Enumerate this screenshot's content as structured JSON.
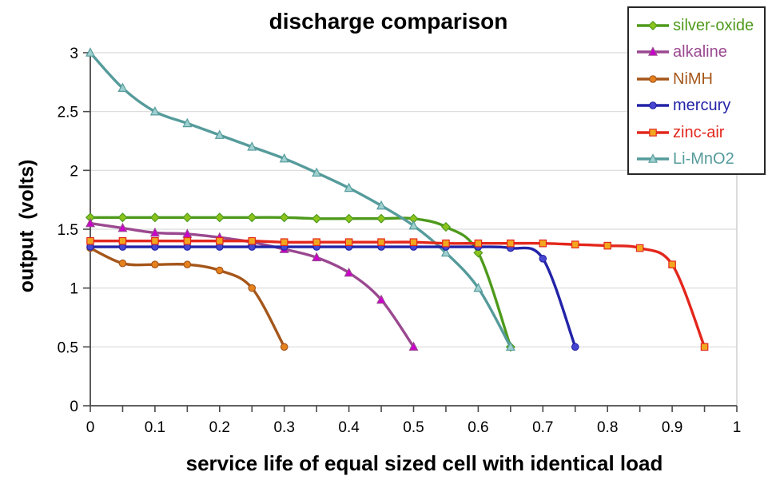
{
  "title": "discharge comparison",
  "x_axis": {
    "label": "service life of equal sized cell with identical load",
    "ticks": [
      "0",
      "0.1",
      "0.2",
      "0.3",
      "0.4",
      "0.5",
      "0.6",
      "0.7",
      "0.8",
      "0.9",
      "1"
    ],
    "range": [
      0,
      1
    ],
    "minor_tick_step": 0.05
  },
  "y_axis": {
    "label": "output  (volts)",
    "ticks": [
      "0",
      "0.5",
      "1",
      "1.5",
      "2",
      "2.5",
      "3"
    ],
    "range": [
      0,
      3
    ],
    "tick_step": 0.5
  },
  "legend": {
    "entries": [
      "silver-oxide",
      "alkaline",
      "NiMH",
      "mercury",
      "zinc-air",
      "Li-MnO2"
    ],
    "position": "top-right"
  },
  "colors": {
    "background": "#ffffff",
    "axis": "#4a4a4a",
    "grid": "#dadada",
    "plot_right_border": "#c8c8c8",
    "text": "#000000",
    "legend_border": "#262626"
  },
  "chart_data": {
    "type": "line",
    "title": "discharge comparison",
    "xlabel": "service life of equal sized cell with identical load",
    "ylabel": "output  (volts)",
    "xlim": [
      0,
      1
    ],
    "ylim": [
      0,
      3
    ],
    "grid": "horizontal-only, every 0.5 volts",
    "legend_position": "top-right",
    "line_style": "smooth",
    "series": [
      {
        "name": "silver-oxide",
        "color": "#4e9a1c",
        "marker": "diamond",
        "marker_fill": "#8cc41c",
        "x": [
          0,
          0.05,
          0.1,
          0.15,
          0.2,
          0.25,
          0.3,
          0.35,
          0.4,
          0.45,
          0.5,
          0.55,
          0.6,
          0.65
        ],
        "y": [
          1.6,
          1.6,
          1.6,
          1.6,
          1.6,
          1.6,
          1.6,
          1.59,
          1.59,
          1.59,
          1.59,
          1.52,
          1.3,
          0.5
        ]
      },
      {
        "name": "alkaline",
        "color": "#9a4890",
        "marker": "triangle",
        "marker_fill": "#cc00cc",
        "x": [
          0,
          0.05,
          0.1,
          0.15,
          0.2,
          0.25,
          0.3,
          0.35,
          0.4,
          0.45,
          0.5
        ],
        "y": [
          1.55,
          1.51,
          1.47,
          1.46,
          1.43,
          1.39,
          1.33,
          1.26,
          1.13,
          0.9,
          0.5
        ]
      },
      {
        "name": "NiMH",
        "color": "#a5561a",
        "marker": "circle",
        "marker_fill": "#e6821e",
        "x": [
          0,
          0.05,
          0.1,
          0.15,
          0.2,
          0.25,
          0.3
        ],
        "y": [
          1.34,
          1.21,
          1.2,
          1.2,
          1.15,
          1.0,
          0.5
        ]
      },
      {
        "name": "mercury",
        "color": "#2323a8",
        "marker": "circle",
        "marker_fill": "#4747d1",
        "x": [
          0,
          0.05,
          0.1,
          0.15,
          0.2,
          0.25,
          0.3,
          0.35,
          0.4,
          0.45,
          0.5,
          0.55,
          0.6,
          0.65,
          0.7,
          0.75
        ],
        "y": [
          1.35,
          1.35,
          1.35,
          1.35,
          1.35,
          1.35,
          1.35,
          1.35,
          1.35,
          1.35,
          1.35,
          1.35,
          1.35,
          1.34,
          1.25,
          0.5
        ]
      },
      {
        "name": "zinc-air",
        "color": "#e3271d",
        "marker": "square",
        "marker_fill": "#f2a71f",
        "x": [
          0,
          0.05,
          0.1,
          0.15,
          0.2,
          0.25,
          0.3,
          0.35,
          0.4,
          0.45,
          0.5,
          0.55,
          0.6,
          0.65,
          0.7,
          0.75,
          0.8,
          0.85,
          0.9,
          0.95
        ],
        "y": [
          1.4,
          1.4,
          1.4,
          1.4,
          1.4,
          1.4,
          1.39,
          1.39,
          1.39,
          1.39,
          1.39,
          1.38,
          1.38,
          1.38,
          1.38,
          1.37,
          1.36,
          1.34,
          1.2,
          0.5
        ]
      },
      {
        "name": "Li-MnO2",
        "color": "#569b9b",
        "marker": "triangle",
        "marker_fill": "#9fd0d0",
        "x": [
          0,
          0.05,
          0.1,
          0.15,
          0.2,
          0.25,
          0.3,
          0.35,
          0.4,
          0.45,
          0.5,
          0.55,
          0.6,
          0.65
        ],
        "y": [
          3.0,
          2.7,
          2.5,
          2.4,
          2.3,
          2.2,
          2.1,
          1.98,
          1.85,
          1.7,
          1.53,
          1.3,
          1.0,
          0.5
        ]
      }
    ]
  }
}
